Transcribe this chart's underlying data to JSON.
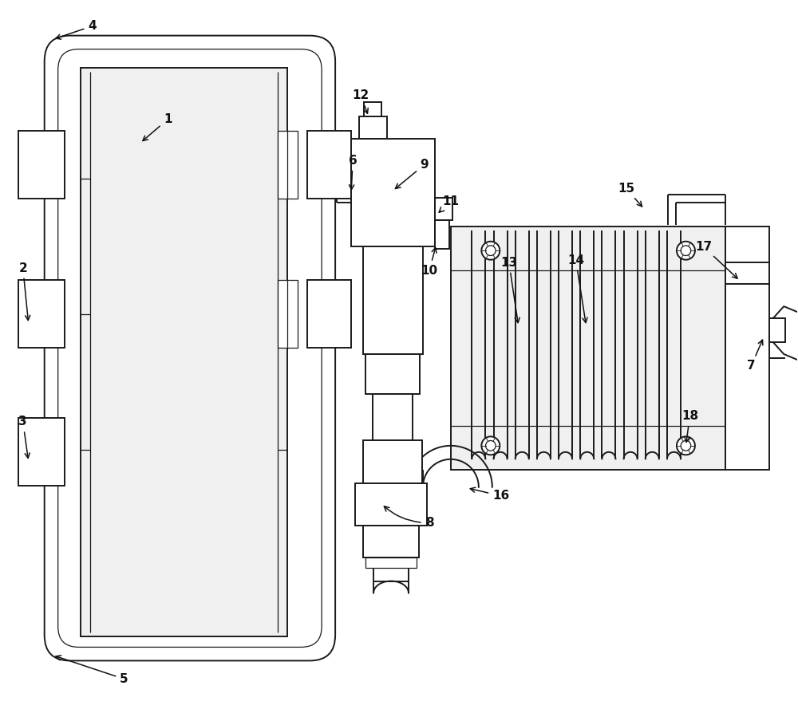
{
  "bg_color": "#ffffff",
  "lc": "#1a1a1a",
  "lw": 1.4,
  "tlw": 0.9,
  "figsize": [
    10.0,
    8.94
  ],
  "dpi": 100,
  "gray_fill": "#e8e8e8",
  "light_gray": "#f0f0f0"
}
